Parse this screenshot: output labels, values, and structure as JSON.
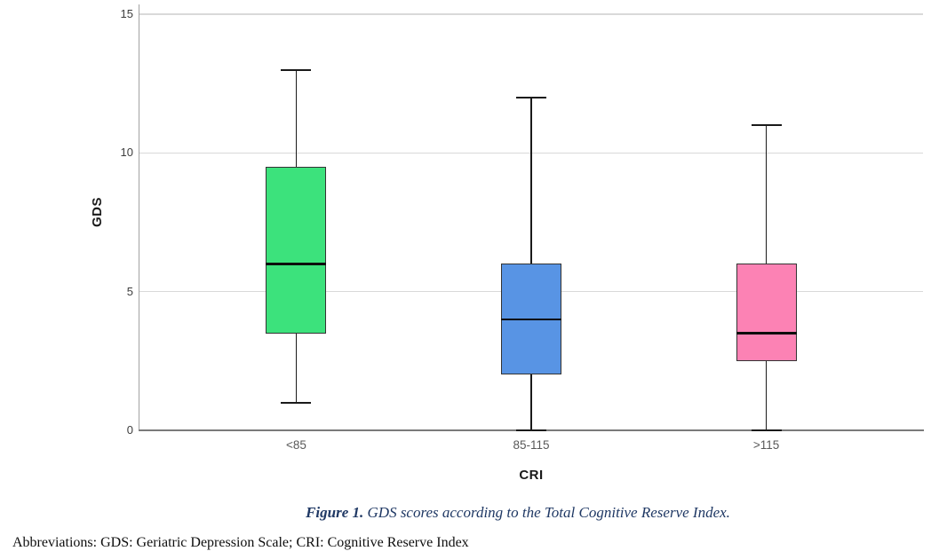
{
  "figure": {
    "caption_label": "Figure 1.",
    "caption_text": "GDS scores according to the Total Cognitive Reserve Index.",
    "caption_color": "#1f3864",
    "abbreviations": "Abbreviations: GDS: Geriatric Depression Scale; CRI: Cognitive Reserve Index"
  },
  "chart_data": {
    "type": "boxplot",
    "title": "",
    "xlabel": "CRI",
    "ylabel": "GDS",
    "ylim": [
      0,
      15
    ],
    "yticks": [
      0,
      5,
      10,
      15
    ],
    "grid": "horizontal-gridlines-at-5-10-15",
    "legend": "none",
    "categories": [
      "<85",
      "85-115",
      ">115"
    ],
    "series": [
      {
        "category": "<85",
        "min": 1,
        "q1": 3.5,
        "median": 6,
        "q3": 9.5,
        "max": 13,
        "color": "#3ce27c"
      },
      {
        "category": "85-115",
        "min": 0,
        "q1": 2,
        "median": 4,
        "q3": 6,
        "max": 12,
        "color": "#5894e4"
      },
      {
        "category": ">115",
        "min": 0,
        "q1": 2.5,
        "median": 3.5,
        "q3": 6,
        "max": 11,
        "color": "#fc82b4"
      }
    ]
  },
  "colors": {
    "gridline": "#d9d9d9",
    "y_axis": "#a3a3a3",
    "x_axis": "#7a7a7a",
    "box_border": "#333333",
    "whisker": "#1a1a1a",
    "tick_label": "#3d3d3d",
    "category_label": "#595959"
  }
}
